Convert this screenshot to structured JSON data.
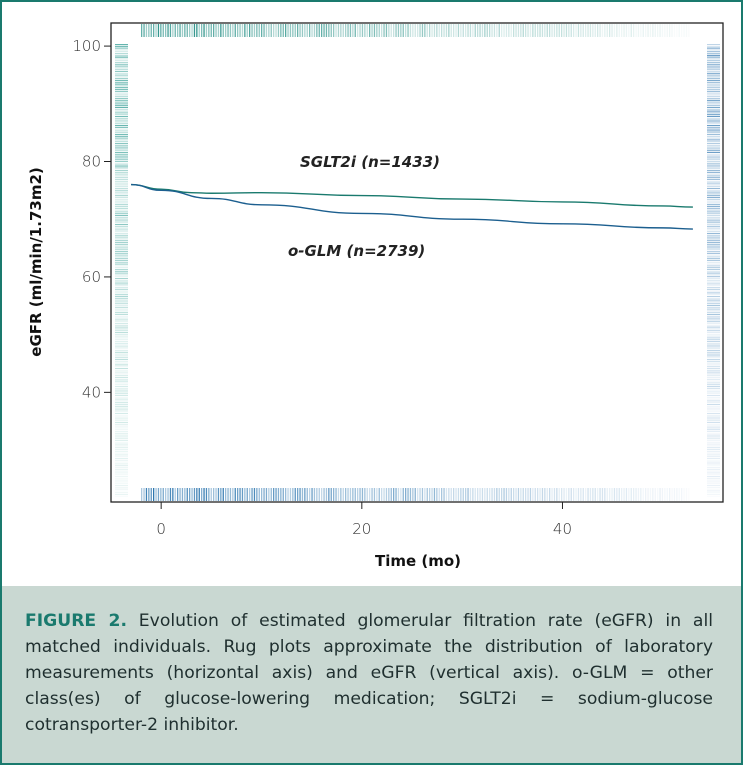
{
  "chart_data": {
    "type": "line",
    "xlabel": "Time (mo)",
    "ylabel": "eGFR (ml/min/1.73m2)",
    "xlim": [
      -5,
      56
    ],
    "ylim": [
      21,
      104
    ],
    "xticks": [
      "0",
      "20",
      "40"
    ],
    "yticks": [
      "40",
      "60",
      "80",
      "100"
    ],
    "grid": false,
    "series": [
      {
        "name": "SGLT2i (n=1433)",
        "color": "#1a7a6e",
        "x": [
          -3,
          0,
          3,
          5,
          10,
          20,
          30,
          40,
          50,
          53
        ],
        "y": [
          76,
          75.2,
          74.6,
          74.5,
          74.6,
          74.1,
          73.5,
          73.0,
          72.3,
          72.1
        ]
      },
      {
        "name": "o-GLM (n=2739)",
        "color": "#1c5f8f",
        "x": [
          -3,
          0,
          5,
          10,
          20,
          30,
          40,
          50,
          53
        ],
        "y": [
          76,
          75.0,
          73.6,
          72.5,
          71.0,
          70.0,
          69.2,
          68.5,
          68.3
        ]
      }
    ],
    "rug": {
      "top_color": "#1a8a80",
      "bottom_color": "#1a6aa8",
      "left_color": "#2a9a90",
      "right_color": "#2f76b0"
    }
  },
  "caption": {
    "label": "FIGURE 2.",
    "text": " Evolution of estimated glomerular filtration rate (eGFR) in all matched individuals. Rug plots approximate the distribution of laboratory measurements (horizontal axis) and eGFR (vertical axis). o-GLM = other class(es) of glucose-lowering medication; SGLT2i = sodium-glucose cotransporter-2 inhibitor."
  }
}
